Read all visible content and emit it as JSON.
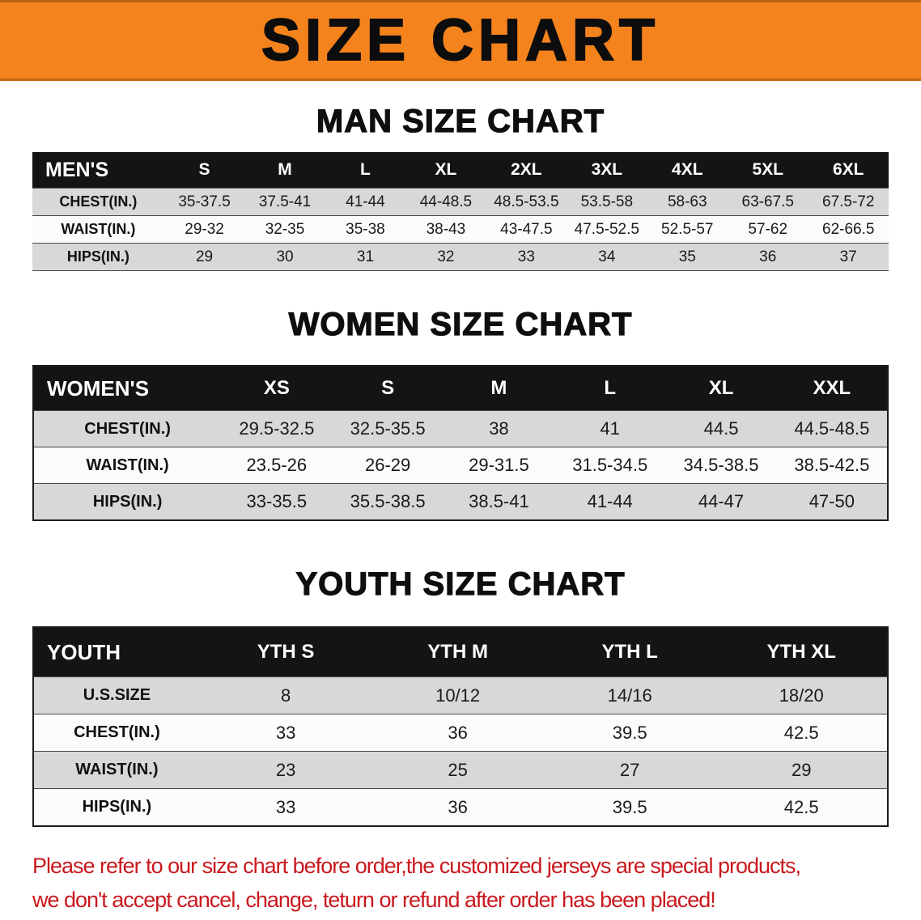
{
  "banner": {
    "title": "SIZE CHART",
    "bg_color": "#F5831D",
    "text_color": "#0D0D0D"
  },
  "colors": {
    "table_header_bar": "#141414",
    "row_shade": "#D8D8D8",
    "note_red": "#C9191E"
  },
  "sections": {
    "men": {
      "heading": "MAN SIZE CHART"
    },
    "women": {
      "heading": "WOMEN SIZE CHART"
    },
    "youth": {
      "heading": "YOUTH SIZE CHART"
    }
  },
  "tables": {
    "men": {
      "header": [
        "MEN'S",
        "S",
        "M",
        "L",
        "XL",
        "2XL",
        "3XL",
        "4XL",
        "5XL",
        "6XL"
      ],
      "rows": [
        {
          "label": "CHEST(IN.)",
          "values": [
            "35-37.5",
            "37.5-41",
            "41-44",
            "44-48.5",
            "48.5-53.5",
            "53.5-58",
            "58-63",
            "63-67.5",
            "67.5-72"
          ]
        },
        {
          "label": "WAIST(IN.)",
          "values": [
            "29-32",
            "32-35",
            "35-38",
            "38-43",
            "43-47.5",
            "47.5-52.5",
            "52.5-57",
            "57-62",
            "62-66.5"
          ]
        },
        {
          "label": "HIPS(IN.)",
          "values": [
            "29",
            "30",
            "31",
            "32",
            "33",
            "34",
            "35",
            "36",
            "37"
          ]
        }
      ]
    },
    "women": {
      "header": [
        "WOMEN'S",
        "XS",
        "S",
        "M",
        "L",
        "XL",
        "XXL"
      ],
      "rows": [
        {
          "label": "CHEST(IN.)",
          "values": [
            "29.5-32.5",
            "32.5-35.5",
            "38",
            "41",
            "44.5",
            "44.5-48.5"
          ]
        },
        {
          "label": "WAIST(IN.)",
          "values": [
            "23.5-26",
            "26-29",
            "29-31.5",
            "31.5-34.5",
            "34.5-38.5",
            "38.5-42.5"
          ]
        },
        {
          "label": "HIPS(IN.)",
          "values": [
            "33-35.5",
            "35.5-38.5",
            "38.5-41",
            "41-44",
            "44-47",
            "47-50"
          ]
        }
      ]
    },
    "youth": {
      "header": [
        "YOUTH",
        "YTH S",
        "YTH M",
        "YTH L",
        "YTH XL"
      ],
      "rows": [
        {
          "label": "U.S.SIZE",
          "values": [
            "8",
            "10/12",
            "14/16",
            "18/20"
          ]
        },
        {
          "label": "CHEST(IN.)",
          "values": [
            "33",
            "36",
            "39.5",
            "42.5"
          ]
        },
        {
          "label": "WAIST(IN.)",
          "values": [
            "23",
            "25",
            "27",
            "29"
          ]
        },
        {
          "label": "HIPS(IN.)",
          "values": [
            "33",
            "36",
            "39.5",
            "42.5"
          ]
        }
      ]
    }
  },
  "footer_note": {
    "line1": "Please refer to our size chart before order,the customized jerseys are special products,",
    "line2": "we don't accept cancel, change, teturn or refund after order has been placed!",
    "text_color": "#C9191E"
  }
}
